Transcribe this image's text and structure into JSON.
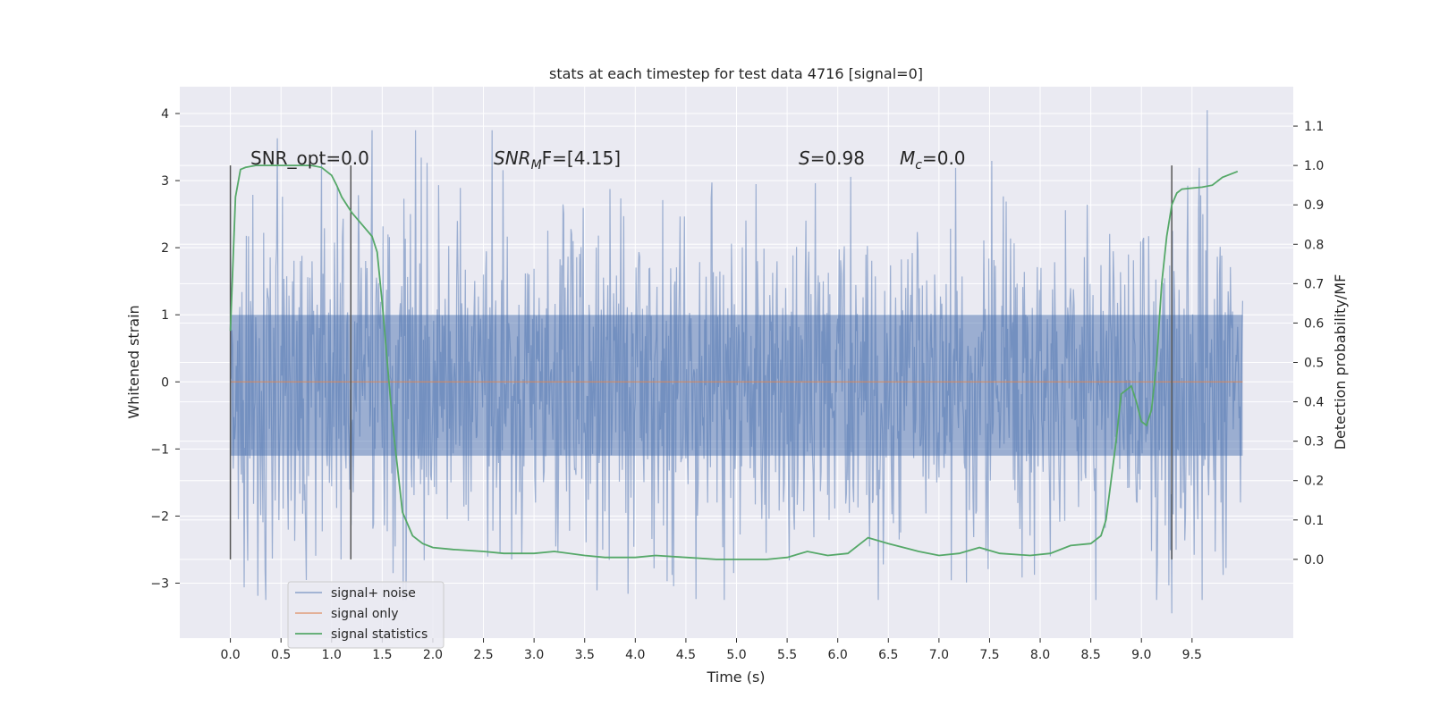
{
  "chart_data": {
    "type": "line",
    "title": "stats at each timestep for test data 4716 [signal=0]",
    "xlabel": "Time (s)",
    "ylabel": "Whitened strain",
    "ylabel_right": "Detection probability/MF",
    "xlim": [
      -0.5,
      10.5
    ],
    "ylim": [
      -3.82,
      4.4
    ],
    "ylim_right": [
      -0.2,
      1.2
    ],
    "x_ticks": [
      "0.0",
      "0.5",
      "1.0",
      "1.5",
      "2.0",
      "2.5",
      "3.0",
      "3.5",
      "4.0",
      "4.5",
      "5.0",
      "5.5",
      "6.0",
      "6.5",
      "7.0",
      "7.5",
      "8.0",
      "8.5",
      "9.0",
      "9.5"
    ],
    "y_ticks": [
      "4",
      "3",
      "2",
      "1",
      "0",
      "−1",
      "−2",
      "−3"
    ],
    "y_right_ticks": [
      "1.1",
      "1.0",
      "0.9",
      "0.8",
      "0.7",
      "0.6",
      "0.5",
      "0.4",
      "0.3",
      "0.2",
      "0.1",
      "0.0"
    ],
    "grid": true,
    "legend_position": "lower-left",
    "legend": [
      "signal+ noise",
      "signal only",
      "signal statistics"
    ],
    "colors": {
      "background": "#eaeaf2",
      "noise": "#4c72b0",
      "signal_only": "#dd8452",
      "statistics": "#55a868",
      "markers": "#555555",
      "grid": "#ffffff"
    },
    "annotations": {
      "snr_opt": "SNR_opt=0.0",
      "snr_mf_prefix": "SNR",
      "snr_mf_sub": "M",
      "snr_mf_rest": "F=[4.15]",
      "s_prefix": "S",
      "s_value": "=0.98",
      "mc_prefix": "M",
      "mc_sub": "c",
      "mc_value": "=0.0"
    },
    "vertical_markers_s": [
      0.0,
      1.19,
      9.3
    ],
    "marker_range_right": [
      0.0,
      1.0
    ],
    "noise_series": {
      "name": "signal+ noise",
      "x_start": 0.0,
      "x_end": 10.0,
      "core_band": [
        -1.1,
        1.0
      ],
      "max_peak": 4.05,
      "min_peak": -3.45,
      "approx_peak_std": 1.3
    },
    "signal_only_series": {
      "name": "signal only",
      "x": [
        0.0,
        10.0
      ],
      "y": [
        0.0,
        0.0
      ]
    },
    "statistics_series": {
      "name": "signal statistics",
      "x": [
        0.0,
        0.05,
        0.1,
        0.15,
        0.25,
        0.4,
        0.6,
        0.8,
        0.9,
        1.0,
        1.05,
        1.1,
        1.2,
        1.3,
        1.4,
        1.45,
        1.5,
        1.6,
        1.7,
        1.8,
        1.9,
        2.0,
        2.2,
        2.5,
        2.7,
        3.0,
        3.2,
        3.5,
        3.7,
        4.0,
        4.2,
        4.5,
        4.8,
        5.0,
        5.3,
        5.5,
        5.7,
        5.9,
        6.1,
        6.3,
        6.5,
        6.8,
        7.0,
        7.2,
        7.4,
        7.6,
        7.9,
        8.1,
        8.3,
        8.5,
        8.6,
        8.65,
        8.7,
        8.75,
        8.8,
        8.9,
        8.95,
        9.0,
        9.05,
        9.1,
        9.15,
        9.2,
        9.25,
        9.3,
        9.35,
        9.4,
        9.6,
        9.7,
        9.8,
        9.95
      ],
      "y": [
        0.58,
        0.92,
        0.99,
        0.995,
        1.0,
        1.0,
        1.0,
        1.0,
        0.995,
        0.975,
        0.95,
        0.92,
        0.88,
        0.85,
        0.82,
        0.78,
        0.65,
        0.35,
        0.12,
        0.06,
        0.04,
        0.03,
        0.025,
        0.02,
        0.015,
        0.015,
        0.02,
        0.01,
        0.005,
        0.005,
        0.01,
        0.005,
        0.0,
        0.0,
        0.0,
        0.005,
        0.02,
        0.01,
        0.015,
        0.055,
        0.04,
        0.02,
        0.01,
        0.015,
        0.03,
        0.015,
        0.01,
        0.015,
        0.035,
        0.04,
        0.06,
        0.1,
        0.2,
        0.3,
        0.42,
        0.44,
        0.4,
        0.35,
        0.34,
        0.38,
        0.5,
        0.7,
        0.82,
        0.9,
        0.93,
        0.94,
        0.945,
        0.95,
        0.97,
        0.985
      ]
    }
  }
}
